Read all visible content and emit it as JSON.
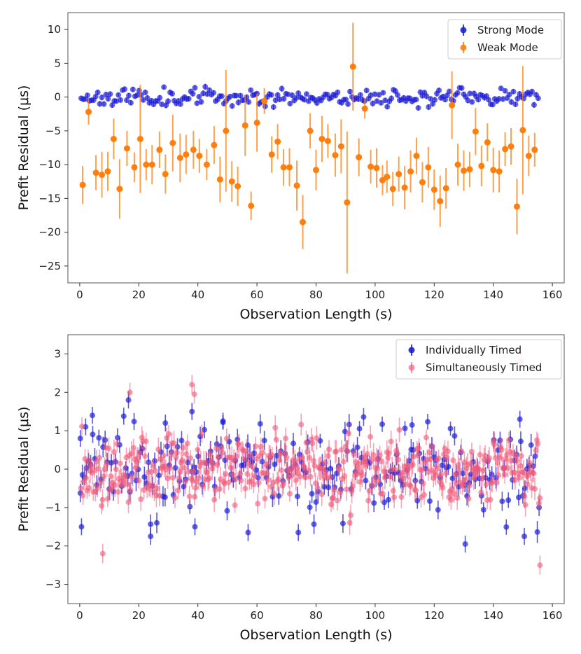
{
  "figure": "Prefit residuals vs observation length",
  "colors": {
    "strong": "#1f1fd6",
    "weak": "#ff7f0e",
    "individual": "#1f1fd6",
    "simultaneous": "#ee5a7a"
  },
  "chart_data": [
    {
      "type": "scatter",
      "subtype": "errorbar",
      "xlabel": "Observation Length (s)",
      "ylabel": "Prefit Residual (μs)",
      "xlim": [
        -4,
        164
      ],
      "ylim": [
        -27.5,
        12.5
      ],
      "xticks": [
        0,
        20,
        40,
        60,
        80,
        100,
        120,
        140,
        160
      ],
      "yticks": [
        -25,
        -20,
        -15,
        -10,
        -5,
        0,
        5,
        10
      ],
      "legend_position": "top-right",
      "series": [
        {
          "name": "Strong Mode",
          "color": "#1f1fd6",
          "generated": "dense",
          "x_range": [
            0.5,
            155.5
          ],
          "step": 0.7,
          "y_center": 0,
          "y_spread": 0.85,
          "yerr": 0.35,
          "seed": 11
        },
        {
          "name": "Weak Mode",
          "color": "#ff7f0e",
          "points": [
            [
              1.0,
              -13.0,
              2.8
            ],
            [
              3.0,
              -2.2,
              1.9
            ],
            [
              5.5,
              -11.2,
              2.6
            ],
            [
              7.5,
              -11.5,
              3.4
            ],
            [
              9.5,
              -11.0,
              2.9
            ],
            [
              11.5,
              -6.2,
              3.0
            ],
            [
              13.5,
              -13.6,
              4.4
            ],
            [
              16.0,
              -7.6,
              2.6
            ],
            [
              18.5,
              -10.4,
              2.2
            ],
            [
              20.5,
              -6.2,
              8.0
            ],
            [
              22.5,
              -10.0,
              2.3
            ],
            [
              24.5,
              -10.0,
              2.9
            ],
            [
              27.0,
              -7.8,
              2.7
            ],
            [
              29.0,
              -11.4,
              2.9
            ],
            [
              31.5,
              -6.8,
              4.2
            ],
            [
              34.0,
              -9.0,
              3.6
            ],
            [
              36.0,
              -8.5,
              2.9
            ],
            [
              38.5,
              -7.8,
              2.8
            ],
            [
              40.5,
              -8.7,
              2.5
            ],
            [
              43.0,
              -10.0,
              2.3
            ],
            [
              45.5,
              -7.1,
              2.8
            ],
            [
              47.5,
              -12.2,
              3.4
            ],
            [
              49.5,
              -5.0,
              9.0
            ],
            [
              51.5,
              -12.5,
              3.0
            ],
            [
              53.5,
              -13.2,
              2.9
            ],
            [
              56.0,
              -4.2,
              4.5
            ],
            [
              58.0,
              -16.1,
              2.1
            ],
            [
              60.0,
              -3.8,
              4.3
            ],
            [
              62.5,
              -0.6,
              1.9
            ],
            [
              65.0,
              -8.5,
              2.7
            ],
            [
              67.0,
              -6.6,
              2.6
            ],
            [
              69.0,
              -10.4,
              2.7
            ],
            [
              71.0,
              -10.4,
              2.8
            ],
            [
              73.5,
              -13.1,
              3.7
            ],
            [
              75.5,
              -18.5,
              4.0
            ],
            [
              78.0,
              -5.0,
              2.6
            ],
            [
              80.0,
              -10.8,
              3.0
            ],
            [
              82.0,
              -6.2,
              3.4
            ],
            [
              84.0,
              -6.5,
              2.5
            ],
            [
              86.5,
              -8.6,
              3.2
            ],
            [
              88.5,
              -7.3,
              4.0
            ],
            [
              90.5,
              -15.6,
              10.5
            ],
            [
              92.5,
              4.5,
              6.5
            ],
            [
              94.5,
              -8.9,
              2.8
            ],
            [
              96.5,
              -1.7,
              1.5
            ],
            [
              98.5,
              -10.3,
              2.5
            ],
            [
              100.5,
              -10.5,
              2.9
            ],
            [
              102.5,
              -12.3,
              2.2
            ],
            [
              104.0,
              -11.8,
              2.4
            ],
            [
              106.0,
              -13.6,
              2.5
            ],
            [
              108.0,
              -11.4,
              2.6
            ],
            [
              110.0,
              -13.4,
              3.2
            ],
            [
              112.0,
              -11.0,
              3.1
            ],
            [
              114.0,
              -8.7,
              2.7
            ],
            [
              116.0,
              -12.6,
              3.0
            ],
            [
              118.0,
              -10.4,
              3.0
            ],
            [
              120.0,
              -13.7,
              3.0
            ],
            [
              122.0,
              -15.4,
              3.8
            ],
            [
              124.0,
              -13.5,
              3.0
            ],
            [
              126.0,
              -1.2,
              5.0
            ],
            [
              128.0,
              -10.0,
              3.1
            ],
            [
              130.0,
              -10.9,
              3.0
            ],
            [
              132.0,
              -10.7,
              2.6
            ],
            [
              134.0,
              -5.1,
              3.5
            ],
            [
              136.0,
              -10.2,
              3.0
            ],
            [
              138.0,
              -6.7,
              2.8
            ],
            [
              140.0,
              -10.8,
              3.3
            ],
            [
              142.0,
              -11.0,
              3.1
            ],
            [
              144.0,
              -7.7,
              2.5
            ],
            [
              146.0,
              -7.3,
              2.7
            ],
            [
              148.0,
              -16.2,
              4.1
            ],
            [
              150.0,
              -4.9,
              9.5
            ],
            [
              152.0,
              -8.7,
              3.0
            ],
            [
              154.0,
              -7.8,
              2.5
            ]
          ]
        }
      ]
    },
    {
      "type": "scatter",
      "subtype": "errorbar",
      "xlabel": "Observation Length (s)",
      "ylabel": "Prefit Residual (μs)",
      "xlim": [
        -4,
        164
      ],
      "ylim": [
        -3.5,
        3.5
      ],
      "xticks": [
        0,
        20,
        40,
        60,
        80,
        100,
        120,
        140,
        160
      ],
      "yticks": [
        -3,
        -2,
        -1,
        0,
        1,
        2,
        3
      ],
      "legend_position": "top-right",
      "series": [
        {
          "name": "Individually Timed",
          "color": "#1f1fd6",
          "generated": "dense",
          "x_range": [
            0.2,
            155.5
          ],
          "step": 0.7,
          "y_center": 0,
          "y_spread": 0.75,
          "yerr": 0.22,
          "seed": 23
        },
        {
          "name": "Simultaneously Timed",
          "color": "#ee5a7a",
          "generated": "dense",
          "x_range": [
            0.4,
            155.8
          ],
          "step": 0.35,
          "y_center": 0,
          "y_spread": 0.6,
          "yerr": 0.25,
          "seed": 37
        }
      ],
      "highlighted_points": [
        {
          "series": "Individually Timed",
          "points": [
            [
              0.2,
              0.8
            ],
            [
              0.6,
              -1.5
            ],
            [
              2.0,
              1.1
            ],
            [
              4.3,
              1.4
            ],
            [
              16.5,
              1.8
            ],
            [
              24.0,
              -1.75
            ],
            [
              29.0,
              1.2
            ],
            [
              38.0,
              1.5
            ],
            [
              39.0,
              -1.5
            ],
            [
              48.5,
              1.25
            ],
            [
              57.0,
              -1.65
            ],
            [
              74.0,
              -1.65
            ],
            [
              112.5,
              1.15
            ],
            [
              130.5,
              -1.95
            ],
            [
              149.0,
              1.3
            ],
            [
              150.5,
              -1.75
            ],
            [
              155.5,
              -1.0
            ]
          ]
        },
        {
          "series": "Simultaneously Timed",
          "points": [
            [
              7.8,
              -2.2
            ],
            [
              17.0,
              2.0
            ],
            [
              38.0,
              2.2
            ],
            [
              38.8,
              1.95
            ],
            [
              149.5,
              2.8
            ],
            [
              155.8,
              -2.5
            ]
          ]
        }
      ]
    }
  ]
}
